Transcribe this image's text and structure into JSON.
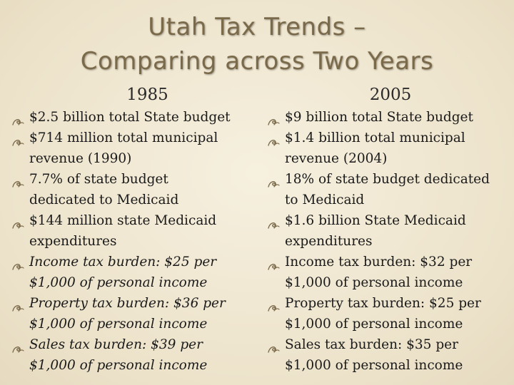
{
  "slide": {
    "title_line1": "Utah Tax Trends –",
    "title_line2": "Comparing across Two Years",
    "bullet_icon": "swirl-bullet-icon",
    "accent_color": "#7a6a4a",
    "left": {
      "year": "1985",
      "items": [
        {
          "line1": "$2.5 billion total State budget",
          "line2": ""
        },
        {
          "line1": "$714 million total municipal",
          "line2": "revenue (1990)"
        },
        {
          "line1": "7.7% of state budget",
          "line2": "dedicated to Medicaid"
        },
        {
          "line1": "$144 million state Medicaid",
          "line2": "expenditures"
        },
        {
          "line1": "Income tax burden: $25 per",
          "line2": "$1,000 of personal income"
        },
        {
          "line1": "Property tax burden: $36 per",
          "line2": "$1,000 of personal income"
        },
        {
          "line1": "Sales tax burden: $39 per",
          "line2": "$1,000 of personal income"
        }
      ]
    },
    "right": {
      "year": "2005",
      "items": [
        {
          "line1": "$9 billion total State budget",
          "line2": ""
        },
        {
          "line1": "$1.4 billion total municipal",
          "line2": "revenue (2004)"
        },
        {
          "line1": "18% of state budget dedicated",
          "line2": "to Medicaid"
        },
        {
          "line1": "$1.6 billion State Medicaid",
          "line2": "expenditures"
        },
        {
          "line1": "Income tax burden: $32 per",
          "line2": "$1,000 of personal income"
        },
        {
          "line1": "Property tax burden: $25 per",
          "line2": "$1,000 of personal income"
        },
        {
          "line1": "Sales tax burden: $35 per",
          "line2": "$1,000 of personal income"
        }
      ]
    }
  }
}
